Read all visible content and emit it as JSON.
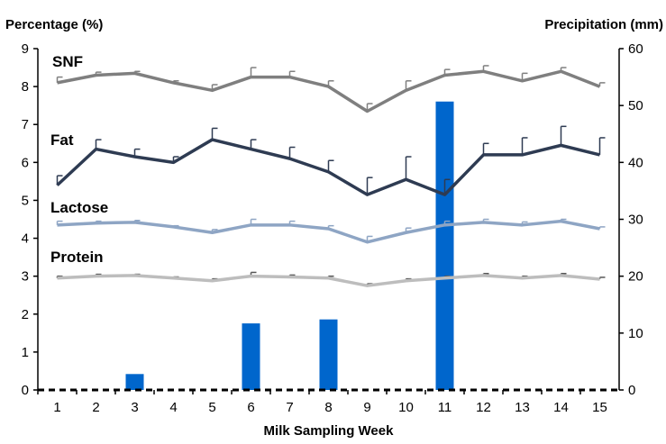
{
  "chart_data": {
    "type": "line",
    "xlabel": "Milk Sampling Week",
    "ylabel_left": "Percentage (%)",
    "ylabel_right": "Precipitation (mm)",
    "x": [
      "1",
      "2",
      "3",
      "4",
      "5",
      "6",
      "7",
      "8",
      "9",
      "10",
      "11",
      "12",
      "13",
      "14",
      "15"
    ],
    "ylim_left": [
      0,
      9
    ],
    "ylim_right": [
      0,
      60
    ],
    "yticks_left": [
      "0",
      "1",
      "2",
      "3",
      "4",
      "5",
      "6",
      "7",
      "8",
      "9"
    ],
    "yticks_right": [
      "0",
      "10",
      "20",
      "30",
      "40",
      "50",
      "60"
    ],
    "grid": false,
    "series": [
      {
        "name": "SNF",
        "color": "#7f7f7f",
        "axis": "left",
        "values": [
          8.1,
          8.3,
          8.35,
          8.1,
          7.9,
          8.25,
          8.25,
          8.0,
          7.35,
          7.9,
          8.3,
          8.4,
          8.15,
          8.4,
          8.0
        ],
        "error": [
          0.15,
          0.08,
          0.05,
          0.05,
          0.15,
          0.25,
          0.15,
          0.15,
          0.2,
          0.25,
          0.15,
          0.15,
          0.2,
          0.1,
          0.1
        ]
      },
      {
        "name": "Fat",
        "color": "#2e3b52",
        "axis": "left",
        "values": [
          5.4,
          6.35,
          6.15,
          6.0,
          6.6,
          6.35,
          6.1,
          5.75,
          5.15,
          5.55,
          5.15,
          6.2,
          6.2,
          6.45,
          6.2
        ],
        "error": [
          0.25,
          0.25,
          0.2,
          0.15,
          0.3,
          0.25,
          0.3,
          0.3,
          0.45,
          0.6,
          0.4,
          0.3,
          0.45,
          0.5,
          0.45
        ]
      },
      {
        "name": "Lactose",
        "color": "#8ea5c4",
        "axis": "left",
        "values": [
          4.35,
          4.4,
          4.42,
          4.3,
          4.15,
          4.35,
          4.35,
          4.25,
          3.9,
          4.15,
          4.35,
          4.42,
          4.35,
          4.45,
          4.25
        ],
        "error": [
          0.1,
          0.05,
          0.05,
          0.03,
          0.08,
          0.15,
          0.1,
          0.08,
          0.15,
          0.12,
          0.1,
          0.08,
          0.08,
          0.05,
          0.05
        ]
      },
      {
        "name": "Protein",
        "color": "#bdbdbd",
        "axis": "left",
        "values": [
          2.95,
          3.0,
          3.02,
          2.95,
          2.88,
          3.0,
          2.98,
          2.95,
          2.75,
          2.88,
          2.95,
          3.02,
          2.95,
          3.02,
          2.92
        ],
        "error": [
          0.05,
          0.05,
          0.03,
          0.03,
          0.05,
          0.1,
          0.05,
          0.05,
          0.05,
          0.05,
          0.05,
          0.05,
          0.05,
          0.05,
          0.05
        ]
      }
    ],
    "bars": {
      "name": "Precipitation",
      "color": "#0066cc",
      "axis": "right",
      "values": [
        0,
        0,
        2.8,
        0,
        0,
        11.7,
        0,
        12.4,
        0,
        0,
        50.7,
        0,
        0,
        0,
        0
      ]
    }
  }
}
